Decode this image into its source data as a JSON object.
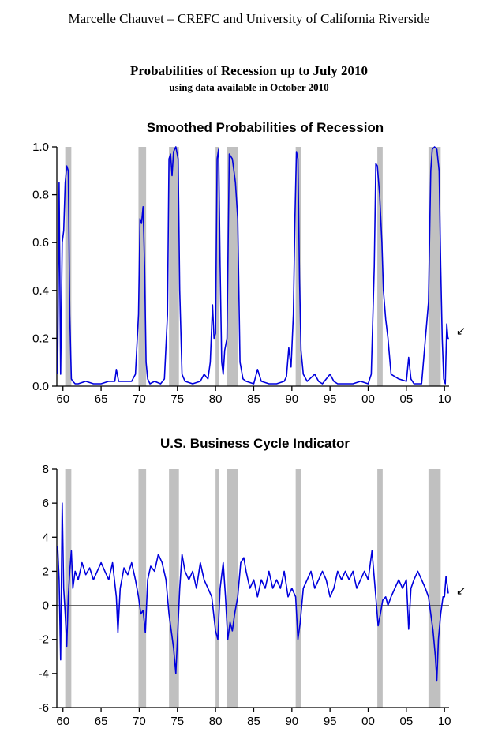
{
  "header": {
    "author": "Marcelle Chauvet – CREFC and University of California Riverside",
    "title": "Probabilities of Recession up to July 2010",
    "subtitle": "using data available in October 2010"
  },
  "colors": {
    "series": "#0000dd",
    "shade": "#c0c0c0",
    "axis": "#000000"
  },
  "recessions": [
    [
      1960.3,
      1961.1
    ],
    [
      1969.9,
      1970.9
    ],
    [
      1973.9,
      1975.2
    ],
    [
      1980.0,
      1980.5
    ],
    [
      1981.5,
      1982.9
    ],
    [
      1990.5,
      1991.2
    ],
    [
      2001.2,
      2001.9
    ],
    [
      2007.9,
      2009.5
    ]
  ],
  "chart_data": [
    {
      "type": "line",
      "title": "Smoothed Probabilities of Recession",
      "xlabel": "",
      "ylabel": "",
      "xlim": [
        1959.2,
        2010.6
      ],
      "ylim": [
        0,
        1.0
      ],
      "xticks": [
        1960,
        1965,
        1970,
        1975,
        1980,
        1985,
        1990,
        1995,
        2000,
        2005,
        2010
      ],
      "xtick_labels": [
        "60",
        "65",
        "70",
        "75",
        "80",
        "85",
        "90",
        "95",
        "00",
        "05",
        "10"
      ],
      "yticks": [
        0,
        0.2,
        0.4,
        0.6,
        0.8,
        1.0
      ],
      "ytick_labels": [
        "0.0",
        "0.2",
        "0.4",
        "0.6",
        "0.8",
        "1.0"
      ],
      "annotation": "↙",
      "series": [
        {
          "x": [
            1959.3,
            1959.5,
            1959.7,
            1959.9,
            1960.1,
            1960.3,
            1960.5,
            1960.7,
            1960.9,
            1961.1,
            1961.3,
            1961.6,
            1962,
            1963,
            1964,
            1965,
            1966,
            1966.8,
            1967,
            1967.3,
            1968,
            1969,
            1969.5,
            1969.9,
            1970.1,
            1970.3,
            1970.5,
            1970.7,
            1970.9,
            1971.1,
            1971.4,
            1972,
            1972.8,
            1973.3,
            1973.7,
            1973.9,
            1974.1,
            1974.3,
            1974.5,
            1974.8,
            1975.1,
            1975.3,
            1975.6,
            1976,
            1977,
            1978,
            1978.5,
            1979,
            1979.3,
            1979.6,
            1979.8,
            1980,
            1980.2,
            1980.4,
            1980.6,
            1980.8,
            1981,
            1981.2,
            1981.5,
            1981.8,
            1982.2,
            1982.6,
            1982.9,
            1983.2,
            1983.6,
            1984,
            1985,
            1985.5,
            1986,
            1987,
            1988,
            1989,
            1989.3,
            1989.6,
            1989.9,
            1990.2,
            1990.4,
            1990.6,
            1990.8,
            1991,
            1991.2,
            1991.5,
            1992,
            1993,
            1993.5,
            1994,
            1995,
            1995.5,
            1996,
            1997,
            1998,
            1999,
            2000,
            2000.4,
            2000.8,
            2001,
            2001.2,
            2001.5,
            2001.8,
            2002,
            2002.3,
            2002.6,
            2003,
            2004,
            2005,
            2005.3,
            2005.6,
            2006,
            2007,
            2007.5,
            2007.9,
            2008.2,
            2008.4,
            2008.7,
            2009,
            2009.3,
            2009.5,
            2009.7,
            2009.9,
            2010.1,
            2010.3,
            2010.45,
            2010.58
          ],
          "y": [
            0.05,
            0.85,
            0.05,
            0.6,
            0.65,
            0.85,
            0.92,
            0.9,
            0.3,
            0.03,
            0.02,
            0.01,
            0.01,
            0.02,
            0.01,
            0.01,
            0.02,
            0.02,
            0.07,
            0.02,
            0.02,
            0.02,
            0.05,
            0.3,
            0.7,
            0.68,
            0.75,
            0.5,
            0.1,
            0.03,
            0.01,
            0.02,
            0.01,
            0.03,
            0.3,
            0.95,
            0.97,
            0.88,
            0.98,
            1.0,
            0.95,
            0.4,
            0.05,
            0.02,
            0.01,
            0.02,
            0.05,
            0.03,
            0.1,
            0.34,
            0.2,
            0.22,
            0.95,
            0.99,
            0.5,
            0.1,
            0.05,
            0.15,
            0.2,
            0.97,
            0.95,
            0.85,
            0.7,
            0.1,
            0.03,
            0.02,
            0.01,
            0.07,
            0.02,
            0.01,
            0.01,
            0.02,
            0.04,
            0.16,
            0.08,
            0.3,
            0.7,
            0.98,
            0.95,
            0.45,
            0.15,
            0.05,
            0.02,
            0.05,
            0.02,
            0.01,
            0.05,
            0.02,
            0.01,
            0.01,
            0.01,
            0.02,
            0.01,
            0.05,
            0.5,
            0.93,
            0.92,
            0.8,
            0.6,
            0.4,
            0.28,
            0.2,
            0.05,
            0.03,
            0.02,
            0.12,
            0.03,
            0.01,
            0.01,
            0.2,
            0.35,
            0.9,
            0.99,
            1.0,
            0.99,
            0.9,
            0.5,
            0.2,
            0.03,
            0.01,
            0.26,
            0.2,
            0.2
          ]
        }
      ]
    },
    {
      "type": "line",
      "title": "U.S. Business Cycle Indicator",
      "xlabel": "",
      "ylabel": "",
      "xlim": [
        1959.2,
        2010.6
      ],
      "ylim": [
        -6,
        8
      ],
      "xticks": [
        1960,
        1965,
        1970,
        1975,
        1980,
        1985,
        1990,
        1995,
        2000,
        2005,
        2010
      ],
      "xtick_labels": [
        "60",
        "65",
        "70",
        "75",
        "80",
        "85",
        "90",
        "95",
        "00",
        "05",
        "10"
      ],
      "yticks": [
        -6,
        -4,
        -2,
        0,
        2,
        4,
        6,
        8
      ],
      "ytick_labels": [
        "-6",
        "-4",
        "-2",
        "0",
        "2",
        "4",
        "6",
        "8"
      ],
      "annotation": "↙",
      "series": [
        {
          "x": [
            1959.3,
            1959.5,
            1959.7,
            1959.9,
            1960.1,
            1960.3,
            1960.5,
            1960.7,
            1960.9,
            1961.1,
            1961.3,
            1961.6,
            1962,
            1962.5,
            1963,
            1963.5,
            1964,
            1964.5,
            1965,
            1965.5,
            1966,
            1966.5,
            1967,
            1967.2,
            1967.5,
            1968,
            1968.5,
            1969,
            1969.5,
            1969.9,
            1970.2,
            1970.5,
            1970.8,
            1971.1,
            1971.5,
            1972,
            1972.5,
            1973,
            1973.5,
            1973.9,
            1974.2,
            1974.5,
            1974.8,
            1975,
            1975.3,
            1975.6,
            1976,
            1976.5,
            1977,
            1977.5,
            1978,
            1978.5,
            1979,
            1979.5,
            1980,
            1980.3,
            1980.6,
            1981,
            1981.3,
            1981.6,
            1981.9,
            1982.2,
            1982.5,
            1982.9,
            1983.3,
            1983.7,
            1984,
            1984.5,
            1985,
            1985.5,
            1986,
            1986.5,
            1987,
            1987.5,
            1988,
            1988.5,
            1989,
            1989.5,
            1990,
            1990.5,
            1990.8,
            1991.1,
            1991.5,
            1992,
            1992.5,
            1993,
            1993.5,
            1994,
            1994.5,
            1995,
            1995.5,
            1996,
            1996.5,
            1997,
            1997.5,
            1998,
            1998.5,
            1999,
            1999.5,
            2000,
            2000.5,
            2001,
            2001.3,
            2001.6,
            2001.9,
            2002.3,
            2002.6,
            2003,
            2003.5,
            2004,
            2004.5,
            2005,
            2005.3,
            2005.6,
            2006,
            2006.5,
            2007,
            2007.5,
            2007.9,
            2008.2,
            2008.5,
            2008.8,
            2009,
            2009.2,
            2009.5,
            2009.8,
            2010,
            2010.2,
            2010.35,
            2010.5
          ],
          "y": [
            3.5,
            1.5,
            -3.2,
            6.0,
            1.0,
            -0.5,
            -2.4,
            0.5,
            2.0,
            3.2,
            1.0,
            2.0,
            1.5,
            2.5,
            1.8,
            2.2,
            1.5,
            2.0,
            2.5,
            2.0,
            1.5,
            2.5,
            0.5,
            -1.6,
            1.0,
            2.2,
            1.8,
            2.5,
            1.5,
            0.5,
            -0.5,
            -0.3,
            -1.6,
            1.5,
            2.3,
            2.0,
            3.0,
            2.5,
            1.5,
            -0.5,
            -1.5,
            -2.5,
            -4.0,
            -2.0,
            1.0,
            3.0,
            2.0,
            1.5,
            2.0,
            1.0,
            2.5,
            1.5,
            1.0,
            0.5,
            -1.5,
            -2.0,
            1.0,
            2.5,
            0.5,
            -2.0,
            -1.0,
            -1.5,
            -0.5,
            0.5,
            2.5,
            2.8,
            2.0,
            1.0,
            1.5,
            0.5,
            1.5,
            1.0,
            2.0,
            1.0,
            1.5,
            1.0,
            2.0,
            0.5,
            1.0,
            0.5,
            -2.0,
            -1.0,
            1.0,
            1.5,
            2.0,
            1.0,
            1.5,
            2.0,
            1.5,
            0.5,
            1.0,
            2.0,
            1.5,
            2.0,
            1.5,
            2.0,
            1.0,
            1.5,
            2.0,
            1.5,
            3.2,
            0.5,
            -1.2,
            -0.5,
            0.3,
            0.5,
            0.0,
            0.5,
            1.0,
            1.5,
            1.0,
            1.5,
            -1.4,
            1.0,
            1.5,
            2.0,
            1.5,
            1.0,
            0.5,
            -0.5,
            -1.5,
            -3.0,
            -4.4,
            -2.0,
            -0.5,
            0.5,
            0.5,
            1.7,
            1.2,
            0.7
          ]
        }
      ]
    }
  ]
}
